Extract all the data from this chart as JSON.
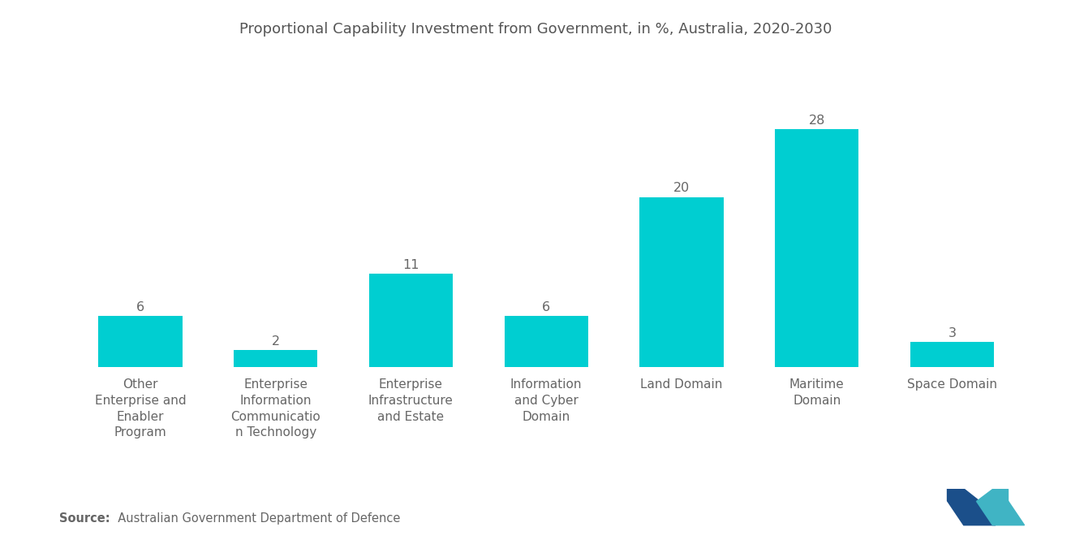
{
  "title": "Proportional Capability Investment from Government, in %, Australia, 2020-2030",
  "categories": [
    "Other\nEnterprise and\nEnabler\nProgram",
    "Enterprise\nInformation\nCommunicatio\nn Technology",
    "Enterprise\nInfrastructure\nand Estate",
    "Information\nand Cyber\nDomain",
    "Land Domain",
    "Maritime\nDomain",
    "Space Domain"
  ],
  "values": [
    6,
    2,
    11,
    6,
    20,
    28,
    3
  ],
  "bar_color": "#00CED1",
  "value_color": "#666666",
  "title_color": "#555555",
  "background_color": "#ffffff",
  "source_label": "Source:",
  "source_rest": "  Australian Government Department of Defence",
  "title_fontsize": 13,
  "label_fontsize": 11,
  "value_fontsize": 11.5,
  "source_fontsize": 10.5,
  "ylim": [
    0,
    33
  ]
}
